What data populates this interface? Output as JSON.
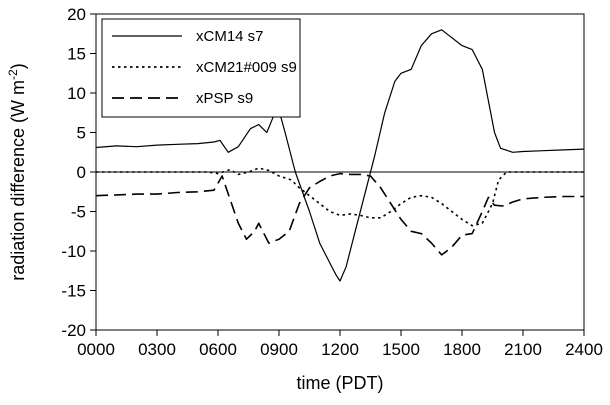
{
  "chart_data": {
    "type": "line",
    "xlabel": "time (PDT)",
    "ylabel_main": "radiation difference (W m",
    "ylabel_sup": "-2",
    "ylabel_close": ")",
    "xlim": [
      0,
      24
    ],
    "ylim": [
      -20,
      20
    ],
    "x_ticks": [
      {
        "v": 0,
        "label": "0000"
      },
      {
        "v": 3,
        "label": "0300"
      },
      {
        "v": 6,
        "label": "0600"
      },
      {
        "v": 9,
        "label": "0900"
      },
      {
        "v": 12,
        "label": "1200"
      },
      {
        "v": 15,
        "label": "1500"
      },
      {
        "v": 18,
        "label": "1800"
      },
      {
        "v": 21,
        "label": "2100"
      },
      {
        "v": 24,
        "label": "2400"
      }
    ],
    "y_ticks": [
      {
        "v": 20,
        "label": "20"
      },
      {
        "v": 15,
        "label": "15"
      },
      {
        "v": 10,
        "label": "10"
      },
      {
        "v": 5,
        "label": "5"
      },
      {
        "v": 0,
        "label": "0"
      },
      {
        "v": -5,
        "label": "-5"
      },
      {
        "v": -10,
        "label": "-10"
      },
      {
        "v": -15,
        "label": "-15"
      },
      {
        "v": -20,
        "label": "-20"
      }
    ],
    "zero_line": true,
    "grid": false,
    "legend_position": "top-left",
    "series": [
      {
        "name": "xCM14 s7",
        "style": "solid",
        "color": "#000000",
        "points": [
          [
            0,
            3.1
          ],
          [
            1,
            3.3
          ],
          [
            2,
            3.2
          ],
          [
            3,
            3.4
          ],
          [
            4,
            3.5
          ],
          [
            5,
            3.6
          ],
          [
            5.8,
            3.8
          ],
          [
            6.1,
            4.0
          ],
          [
            6.5,
            2.5
          ],
          [
            7.0,
            3.2
          ],
          [
            7.6,
            5.5
          ],
          [
            8.0,
            6.0
          ],
          [
            8.4,
            5.0
          ],
          [
            8.8,
            7.5
          ],
          [
            9.0,
            7.8
          ],
          [
            9.3,
            5.0
          ],
          [
            9.8,
            0.0
          ],
          [
            10.5,
            -5.0
          ],
          [
            11.0,
            -9.0
          ],
          [
            11.5,
            -11.5
          ],
          [
            11.8,
            -13.0
          ],
          [
            12.0,
            -13.8
          ],
          [
            12.3,
            -12.0
          ],
          [
            12.7,
            -8.0
          ],
          [
            13.2,
            -3.0
          ],
          [
            13.7,
            2.0
          ],
          [
            14.2,
            7.5
          ],
          [
            14.7,
            11.5
          ],
          [
            15.0,
            12.5
          ],
          [
            15.5,
            13.0
          ],
          [
            16.0,
            16.0
          ],
          [
            16.5,
            17.5
          ],
          [
            17.0,
            18.0
          ],
          [
            17.5,
            17.0
          ],
          [
            18.0,
            16.0
          ],
          [
            18.5,
            15.5
          ],
          [
            19.0,
            13.0
          ],
          [
            19.3,
            9.0
          ],
          [
            19.6,
            5.0
          ],
          [
            19.9,
            3.0
          ],
          [
            20.5,
            2.5
          ],
          [
            21.0,
            2.6
          ],
          [
            22.0,
            2.7
          ],
          [
            23.0,
            2.8
          ],
          [
            24.0,
            2.9
          ]
        ]
      },
      {
        "name": "xCM21#009 s9",
        "style": "dotted",
        "color": "#000000",
        "points": [
          [
            0,
            0.0
          ],
          [
            5.5,
            0.0
          ],
          [
            6.0,
            -0.2
          ],
          [
            6.6,
            0.3
          ],
          [
            7.0,
            -0.3
          ],
          [
            7.5,
            0.0
          ],
          [
            8.0,
            0.5
          ],
          [
            8.5,
            0.2
          ],
          [
            9.0,
            -0.5
          ],
          [
            9.6,
            -1.0
          ],
          [
            10.0,
            -2.0
          ],
          [
            10.5,
            -3.0
          ],
          [
            11.0,
            -4.0
          ],
          [
            11.5,
            -5.0
          ],
          [
            12.0,
            -5.5
          ],
          [
            12.5,
            -5.3
          ],
          [
            13.0,
            -5.5
          ],
          [
            13.5,
            -5.8
          ],
          [
            14.0,
            -5.8
          ],
          [
            14.5,
            -5.0
          ],
          [
            15.0,
            -4.0
          ],
          [
            15.5,
            -3.2
          ],
          [
            16.0,
            -3.0
          ],
          [
            16.5,
            -3.2
          ],
          [
            17.0,
            -4.0
          ],
          [
            17.5,
            -5.0
          ],
          [
            18.0,
            -6.0
          ],
          [
            18.5,
            -6.8
          ],
          [
            19.0,
            -6.5
          ],
          [
            19.5,
            -4.0
          ],
          [
            19.8,
            -1.0
          ],
          [
            20.2,
            0.0
          ],
          [
            24.0,
            0.0
          ]
        ]
      },
      {
        "name": "xPSP s9",
        "style": "dashed",
        "color": "#000000",
        "points": [
          [
            0,
            -3.0
          ],
          [
            1,
            -2.9
          ],
          [
            2,
            -2.8
          ],
          [
            3,
            -2.8
          ],
          [
            4,
            -2.6
          ],
          [
            5,
            -2.5
          ],
          [
            5.8,
            -2.3
          ],
          [
            6.2,
            -0.5
          ],
          [
            6.6,
            -3.5
          ],
          [
            7.0,
            -6.5
          ],
          [
            7.4,
            -8.5
          ],
          [
            7.8,
            -7.5
          ],
          [
            8.0,
            -6.5
          ],
          [
            8.5,
            -9.0
          ],
          [
            9.0,
            -8.5
          ],
          [
            9.5,
            -7.5
          ],
          [
            10.0,
            -4.0
          ],
          [
            10.5,
            -2.0
          ],
          [
            11.0,
            -1.2
          ],
          [
            11.5,
            -0.5
          ],
          [
            12.0,
            -0.2
          ],
          [
            12.5,
            -0.3
          ],
          [
            13.0,
            -0.3
          ],
          [
            13.5,
            -0.5
          ],
          [
            14.0,
            -2.0
          ],
          [
            14.5,
            -4.0
          ],
          [
            15.0,
            -6.0
          ],
          [
            15.5,
            -7.5
          ],
          [
            16.0,
            -7.8
          ],
          [
            16.5,
            -9.0
          ],
          [
            17.0,
            -10.5
          ],
          [
            17.5,
            -9.5
          ],
          [
            18.0,
            -8.0
          ],
          [
            18.5,
            -7.8
          ],
          [
            19.0,
            -5.0
          ],
          [
            19.3,
            -3.2
          ],
          [
            19.6,
            -4.2
          ],
          [
            20.0,
            -4.3
          ],
          [
            20.5,
            -3.8
          ],
          [
            21.0,
            -3.4
          ],
          [
            22.0,
            -3.2
          ],
          [
            23.0,
            -3.1
          ],
          [
            24.0,
            -3.1
          ]
        ]
      }
    ]
  }
}
